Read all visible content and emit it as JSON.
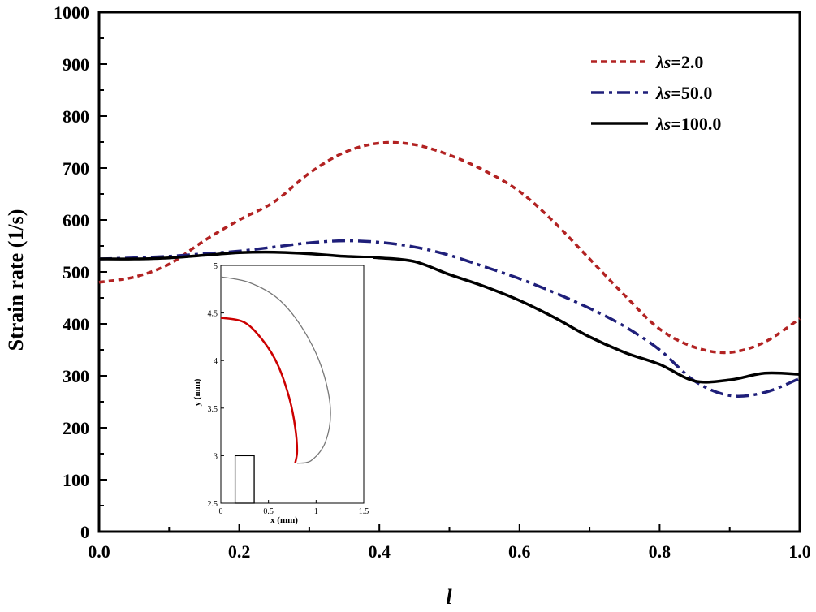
{
  "chart_data": {
    "type": "line",
    "xlabel": "l",
    "ylabel": "Strain rate (1/s)",
    "xlim": [
      0.0,
      1.0
    ],
    "ylim": [
      0,
      1000
    ],
    "x_ticks": [
      "0.0",
      "0.2",
      "0.4",
      "0.6",
      "0.8",
      "1.0"
    ],
    "y_ticks": [
      "0",
      "100",
      "200",
      "300",
      "400",
      "500",
      "600",
      "700",
      "800",
      "900",
      "1000"
    ],
    "legend_position": "top-right",
    "series": [
      {
        "name": "λs=2.0",
        "legend_symbol": "λs",
        "legend_value": "=2.0",
        "color": "#b22222",
        "style": "dotted",
        "x": [
          0.0,
          0.05,
          0.1,
          0.15,
          0.2,
          0.25,
          0.3,
          0.35,
          0.4,
          0.45,
          0.5,
          0.55,
          0.6,
          0.65,
          0.7,
          0.75,
          0.8,
          0.85,
          0.9,
          0.95,
          1.0
        ],
        "y": [
          480,
          490,
          515,
          560,
          600,
          635,
          690,
          730,
          748,
          745,
          725,
          695,
          655,
          595,
          525,
          455,
          390,
          355,
          345,
          365,
          410
        ]
      },
      {
        "name": "λs=50.0",
        "legend_symbol": "λs",
        "legend_value": "=50.0",
        "color": "#1f1f7a",
        "style": "dash-dot",
        "x": [
          0.0,
          0.05,
          0.1,
          0.15,
          0.2,
          0.25,
          0.3,
          0.35,
          0.4,
          0.45,
          0.5,
          0.55,
          0.6,
          0.65,
          0.7,
          0.75,
          0.8,
          0.85,
          0.9,
          0.95,
          1.0
        ],
        "y": [
          525,
          527,
          530,
          535,
          540,
          548,
          556,
          560,
          557,
          548,
          532,
          510,
          487,
          460,
          430,
          395,
          350,
          290,
          262,
          268,
          295
        ]
      },
      {
        "name": "λs=100.0",
        "legend_symbol": "λs",
        "legend_value": "=100.0",
        "color": "#000000",
        "style": "solid",
        "x": [
          0.0,
          0.05,
          0.1,
          0.15,
          0.2,
          0.25,
          0.3,
          0.35,
          0.4,
          0.45,
          0.5,
          0.55,
          0.6,
          0.65,
          0.7,
          0.75,
          0.8,
          0.85,
          0.9,
          0.95,
          1.0
        ],
        "y": [
          525,
          525,
          527,
          532,
          537,
          538,
          535,
          530,
          527,
          520,
          495,
          472,
          445,
          412,
          375,
          345,
          322,
          290,
          292,
          305,
          303
        ]
      }
    ],
    "inset": {
      "xlabel": "x (mm)",
      "ylabel": "y (mm)",
      "xlim": [
        0,
        1.5
      ],
      "ylim": [
        2.5,
        5
      ],
      "x_ticks": [
        "0",
        "0.5",
        "1",
        "1.5"
      ],
      "y_ticks": [
        "2.5",
        "3",
        "3.5",
        "4",
        "4.5",
        "5"
      ],
      "outer_boundary": {
        "color": "#777777",
        "x": [
          0.0,
          0.3,
          0.6,
          0.85,
          1.05,
          1.15,
          1.1,
          0.95,
          0.8
        ],
        "y": [
          4.88,
          4.82,
          4.65,
          4.35,
          3.95,
          3.5,
          3.15,
          2.95,
          2.92
        ]
      },
      "flame_front": {
        "color": "#cc0000",
        "x": [
          0.0,
          0.25,
          0.45,
          0.6,
          0.72,
          0.78,
          0.8,
          0.78
        ],
        "y": [
          4.45,
          4.4,
          4.2,
          3.95,
          3.6,
          3.3,
          3.05,
          2.92
        ]
      },
      "nozzle": {
        "x": [
          0.15,
          0.35
        ],
        "y": [
          2.5,
          3.0
        ]
      }
    }
  }
}
